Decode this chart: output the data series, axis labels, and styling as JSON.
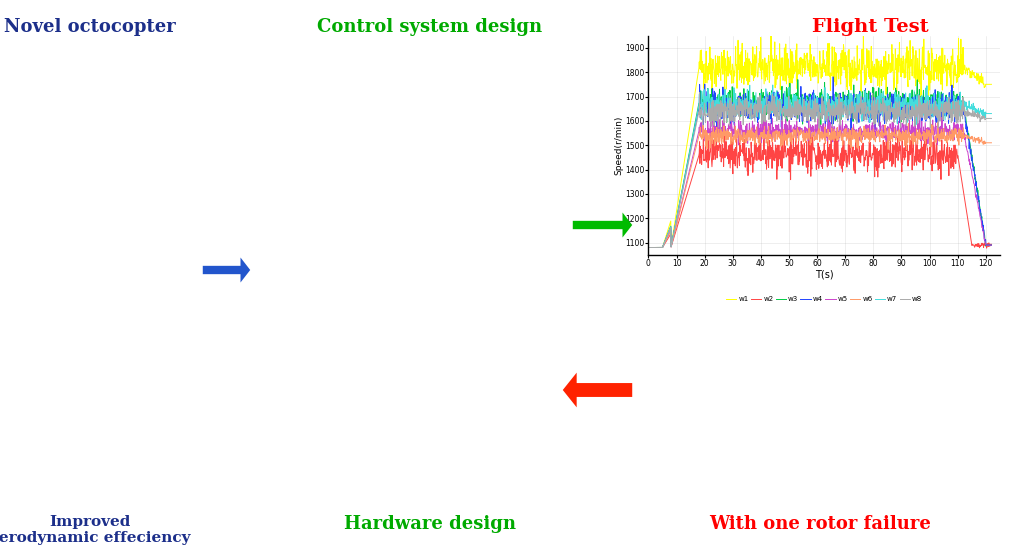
{
  "title_novel": "Novel octocopter",
  "title_control": "Control system design",
  "title_flight": "Flight Test",
  "title_aero": "Improved\naerodynamic effeciency",
  "title_hardware": "Hardware design",
  "title_failure": "With one rotor failure",
  "color_novel": "#1C2F8A",
  "color_control": "#00AA00",
  "color_flight": "#FF0000",
  "color_aero": "#1C2F8A",
  "color_hardware": "#00AA00",
  "color_failure": "#FF0000",
  "plot_ylim": [
    1050,
    1950
  ],
  "plot_xlim": [
    0,
    125
  ],
  "plot_yticks": [
    1100,
    1200,
    1300,
    1400,
    1500,
    1600,
    1700,
    1800,
    1900
  ],
  "plot_xticks": [
    0,
    10,
    20,
    30,
    40,
    50,
    60,
    70,
    80,
    90,
    100,
    110,
    120
  ],
  "plot_xlabel": "T(s)",
  "plot_ylabel": "Speed(r/min)",
  "line_colors": {
    "w1": "#FFFF00",
    "w2": "#FF4444",
    "w3": "#00CC44",
    "w4": "#2244FF",
    "w5": "#CC44CC",
    "w6": "#FF9966",
    "w7": "#44DDDD",
    "w8": "#AAAAAA"
  },
  "background_color": "#FFFFFF",
  "arrow_blue": "#2255CC",
  "arrow_green": "#00BB00",
  "arrow_red": "#FF2200"
}
